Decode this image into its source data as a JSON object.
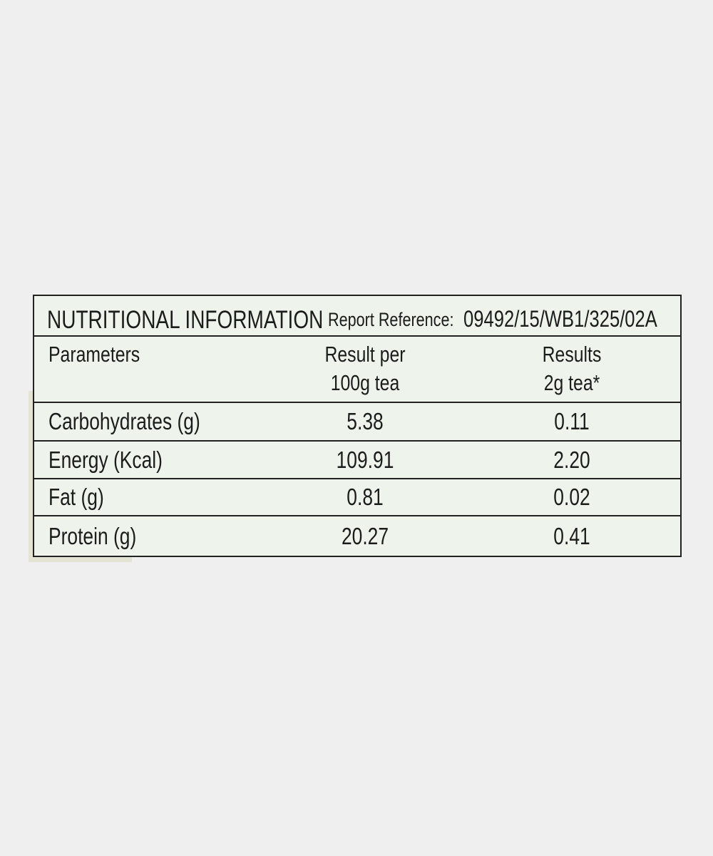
{
  "title": "NUTRITIONAL INFORMATION",
  "report_reference": {
    "label": "Report Reference:",
    "value": "09492/15/WB1/325/02A"
  },
  "table": {
    "header": [
      [
        "Parameters"
      ],
      [
        "Result per",
        "100g tea"
      ],
      [
        "Results",
        "2g tea*"
      ]
    ],
    "rows": [
      [
        "Carbohydrates (g)",
        "5.38",
        "0.11"
      ],
      [
        "Energy (Kcal)",
        "109.91",
        "2.20"
      ],
      [
        "Fat (g)",
        "0.81",
        "0.02"
      ],
      [
        "Protein (g)",
        "20.27",
        "0.41"
      ]
    ]
  }
}
